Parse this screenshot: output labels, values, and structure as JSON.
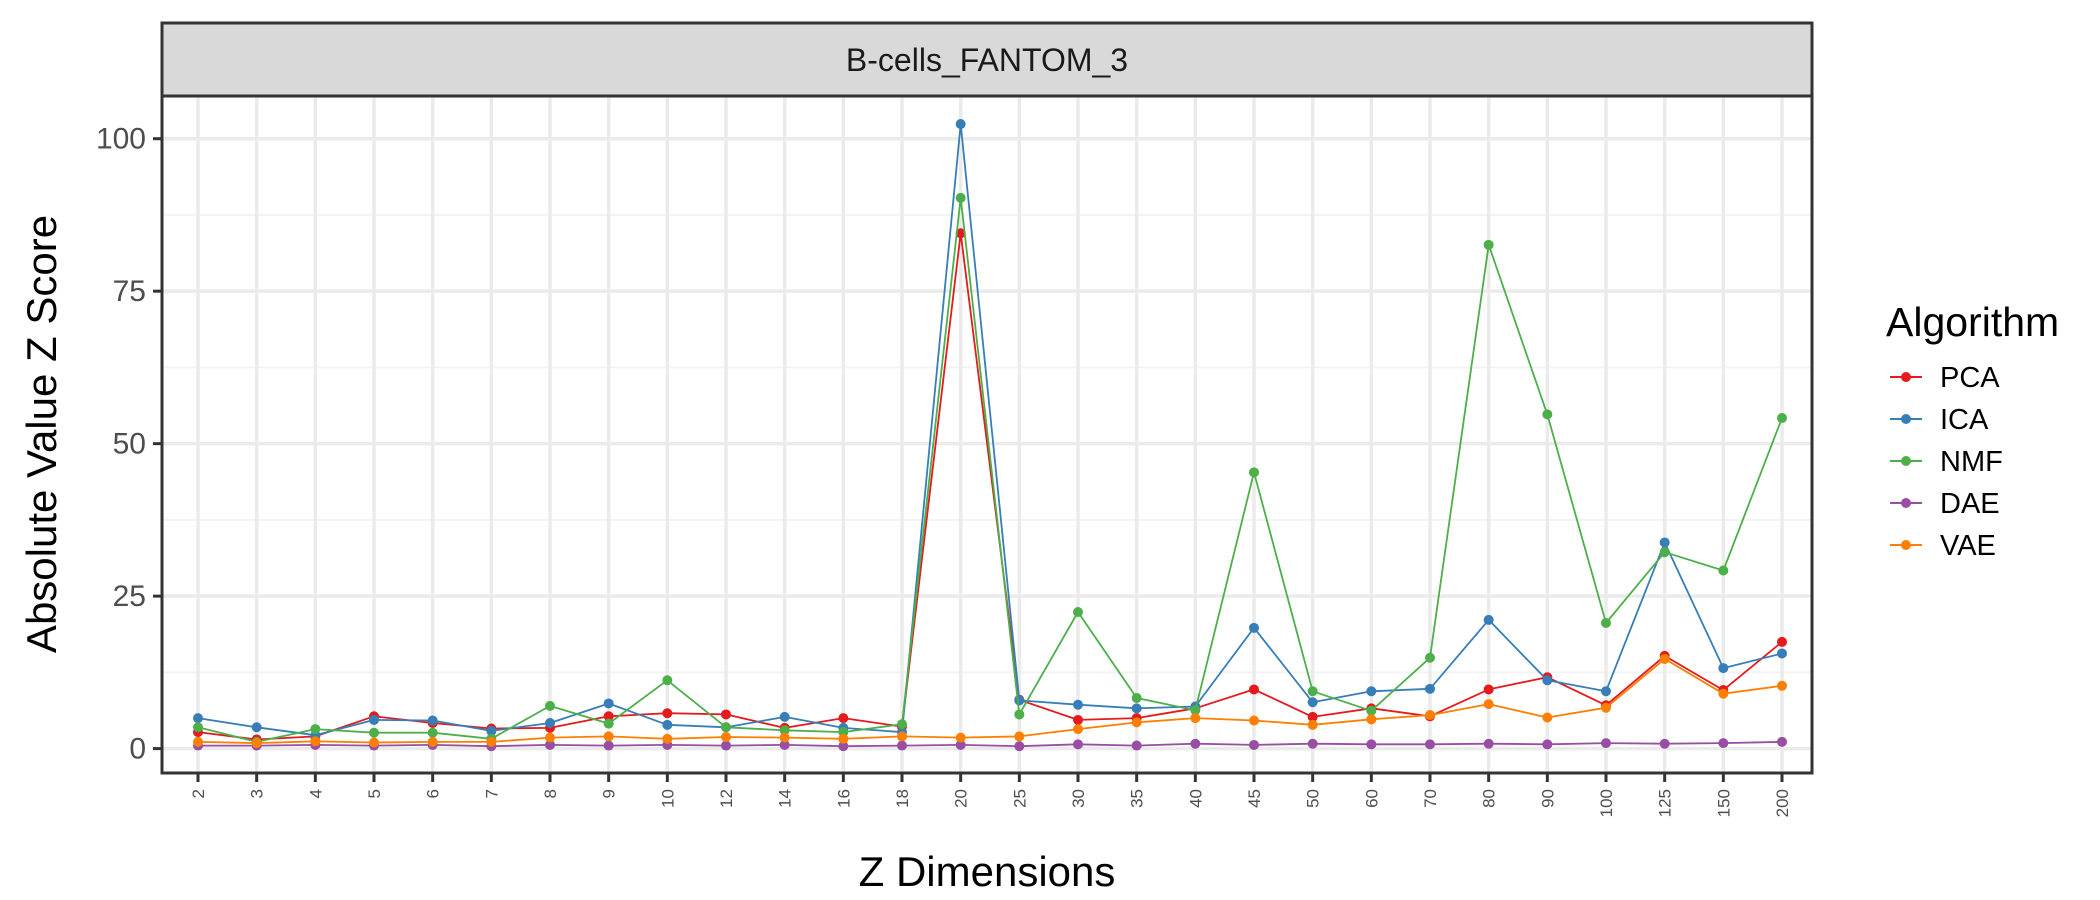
{
  "chart_data": {
    "type": "line",
    "facet_title": "B-cells_FANTOM_3",
    "xlabel": "Z Dimensions",
    "ylabel": "Absolute Value Z Score",
    "ylim": [
      -4,
      107
    ],
    "yticks": [
      0,
      25,
      50,
      75,
      100
    ],
    "grid": true,
    "legend": {
      "title": "Algorithm",
      "position": "right"
    },
    "categories": [
      "2",
      "3",
      "4",
      "5",
      "6",
      "7",
      "8",
      "9",
      "10",
      "12",
      "14",
      "16",
      "18",
      "20",
      "25",
      "30",
      "35",
      "40",
      "45",
      "50",
      "60",
      "70",
      "80",
      "90",
      "100",
      "125",
      "150",
      "200"
    ],
    "series": [
      {
        "name": "PCA",
        "color": "#e41a1c",
        "values": [
          2.7,
          1.5,
          2.0,
          5.3,
          4.2,
          3.3,
          3.4,
          5.3,
          5.8,
          5.6,
          3.4,
          5.0,
          3.6,
          84.5,
          8.0,
          4.7,
          5.0,
          6.6,
          9.7,
          5.2,
          6.6,
          5.3,
          9.7,
          11.7,
          7.1,
          15.2,
          9.6,
          17.5
        ]
      },
      {
        "name": "ICA",
        "color": "#377eb8",
        "values": [
          5.0,
          3.5,
          2.2,
          4.7,
          4.6,
          2.9,
          4.2,
          7.4,
          3.9,
          3.5,
          5.2,
          3.4,
          2.7,
          102.4,
          7.9,
          7.2,
          6.6,
          6.9,
          19.8,
          7.6,
          9.4,
          9.8,
          21.1,
          11.2,
          9.4,
          33.8,
          13.2,
          15.6
        ]
      },
      {
        "name": "NMF",
        "color": "#4daf4a",
        "values": [
          3.5,
          1.1,
          3.2,
          2.6,
          2.6,
          1.6,
          7.0,
          4.1,
          11.2,
          3.5,
          3.0,
          2.7,
          4.0,
          90.3,
          5.6,
          22.4,
          8.3,
          6.3,
          45.3,
          9.4,
          6.2,
          14.9,
          82.6,
          54.8,
          20.6,
          32.2,
          29.2,
          54.2
        ]
      },
      {
        "name": "DAE",
        "color": "#984ea3",
        "values": [
          0.5,
          0.5,
          0.6,
          0.5,
          0.6,
          0.4,
          0.6,
          0.5,
          0.6,
          0.5,
          0.6,
          0.4,
          0.5,
          0.6,
          0.4,
          0.7,
          0.5,
          0.8,
          0.6,
          0.8,
          0.7,
          0.7,
          0.8,
          0.7,
          0.9,
          0.8,
          0.9,
          1.1
        ]
      },
      {
        "name": "VAE",
        "color": "#ff7f00",
        "values": [
          1.1,
          0.9,
          1.2,
          1.0,
          1.1,
          1.1,
          1.8,
          2.0,
          1.6,
          1.9,
          1.8,
          1.6,
          2.0,
          1.8,
          2.0,
          3.2,
          4.3,
          5.0,
          4.6,
          3.9,
          4.8,
          5.5,
          7.3,
          5.1,
          6.7,
          14.7,
          9.0,
          10.3
        ]
      }
    ]
  },
  "style": {
    "panel_border": "#333333",
    "grid_major": "#ebebeb",
    "strip_fill": "#d9d9d9",
    "tick_text": "#4d4d4d"
  }
}
